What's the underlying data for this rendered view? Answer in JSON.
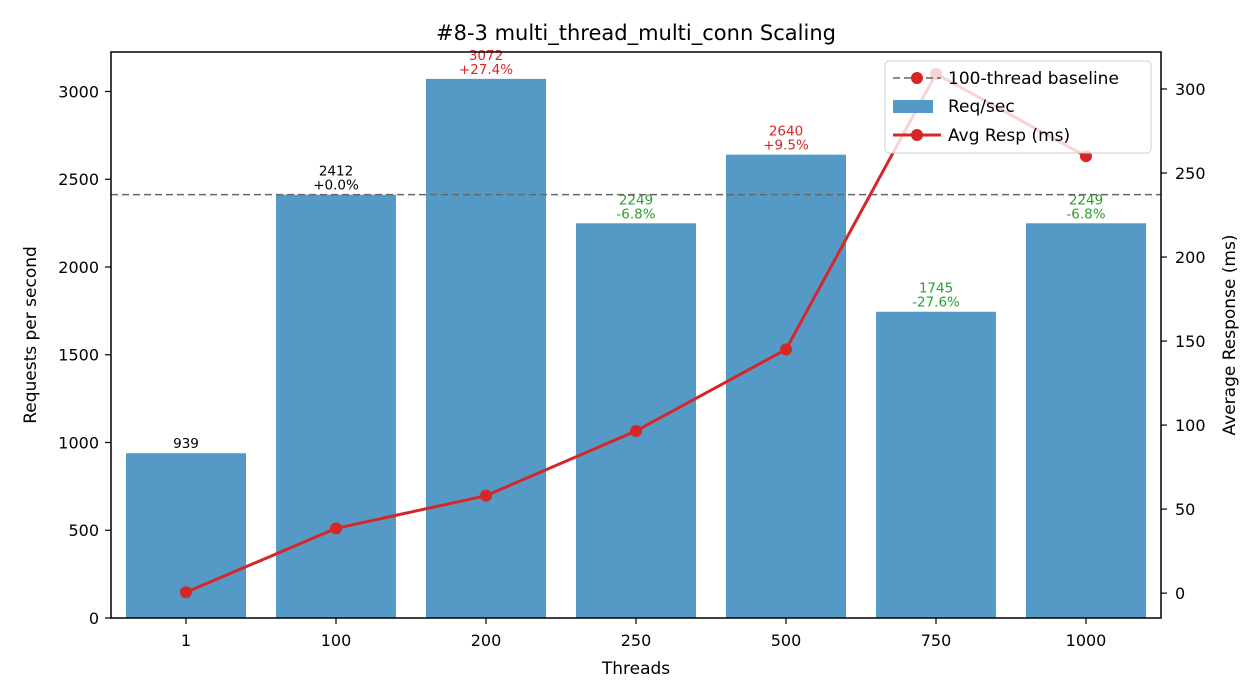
{
  "chart_data": {
    "type": "bar",
    "title": "#8-3 multi_thread_multi_conn Scaling",
    "xlabel": "Threads",
    "ylabel": "Requests per second",
    "y2label": "Average Response (ms)",
    "categories": [
      "1",
      "100",
      "200",
      "250",
      "500",
      "750",
      "1000"
    ],
    "ylim": [
      0,
      3225
    ],
    "y2lim": [
      -14.8,
      322
    ],
    "yticks": [
      0,
      500,
      1000,
      1500,
      2000,
      2500,
      3000
    ],
    "y2ticks": [
      0,
      50,
      100,
      150,
      200,
      250,
      300
    ],
    "baseline": {
      "name": "100-thread baseline",
      "value": 2412,
      "color": "#666666"
    },
    "series": [
      {
        "name": "Req/sec",
        "kind": "bar",
        "axis": "left",
        "color": "#5599c7",
        "values": [
          939,
          2412,
          3072,
          2249,
          2640,
          1745,
          2249
        ]
      },
      {
        "name": "Avg Resp (ms)",
        "kind": "line",
        "axis": "right",
        "color": "#d62728",
        "values": [
          0.5,
          38.5,
          58,
          96.5,
          145,
          309,
          260
        ]
      }
    ],
    "value_labels": [
      "939",
      "2412",
      "3072",
      "2249",
      "2640",
      "1745",
      "2249"
    ],
    "delta_labels": [
      "",
      "+0.0%",
      "+27.4%",
      "-6.8%",
      "+9.5%",
      "-27.6%",
      "-6.8%"
    ],
    "label_colors": [
      "#000000",
      "#000000",
      "#d62728",
      "#2ca02c",
      "#d62728",
      "#2ca02c",
      "#2ca02c"
    ],
    "legend": {
      "placement": "top-right"
    },
    "grid": false
  }
}
